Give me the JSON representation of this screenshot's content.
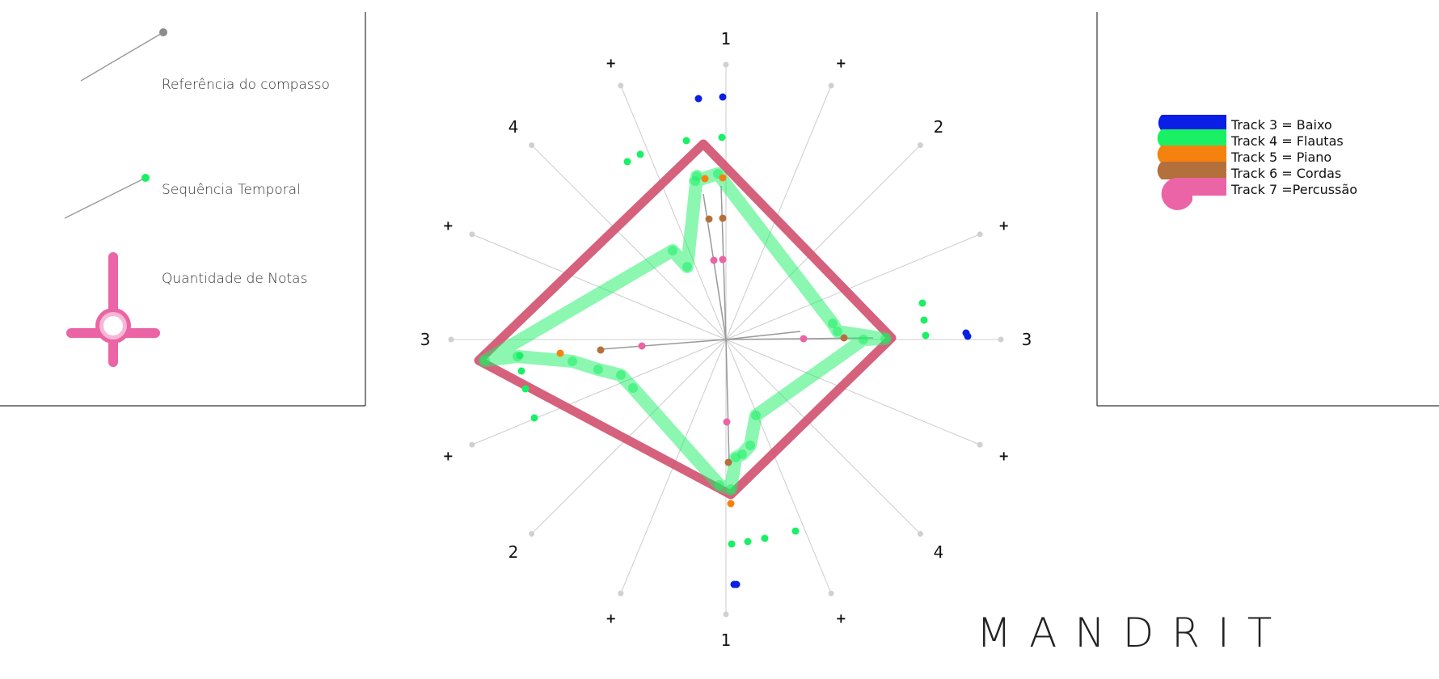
{
  "legend": {
    "measure_ref_label": "Referência do compasso",
    "sequence_label": "Sequência Temporal",
    "quantity_label": "Quantidade de Notas"
  },
  "tracks": [
    {
      "label": "Track 3 = Baixo",
      "color": "#0a1ee6"
    },
    {
      "label": "Track 4 = Flautas",
      "color": "#19f064"
    },
    {
      "label": "Track 5 = Piano",
      "color": "#f5820f"
    },
    {
      "label": "Track 6 = Cordas",
      "color": "#b4703c"
    },
    {
      "label": "Track 7 =Percussão",
      "color": "#eb64a5"
    }
  ],
  "axes": {
    "labels": [
      "1",
      "+",
      "2",
      "+",
      "3",
      "+",
      "4",
      "+",
      "1",
      "+",
      "2",
      "+",
      "3",
      "+",
      "4",
      "+"
    ]
  },
  "colors": {
    "flute_path": "#19f064",
    "quantity_outline": "#d2506e",
    "ref_line": "#999999",
    "spoke": "#cccccc"
  },
  "brand": "MANDRIT"
}
